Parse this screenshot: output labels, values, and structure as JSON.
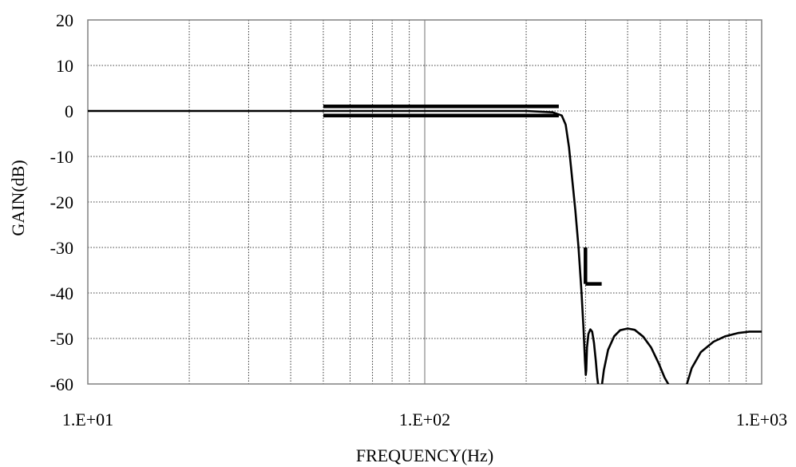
{
  "chart_data": {
    "type": "line",
    "title": "",
    "xlabel": "FREQUENCY(Hz)",
    "ylabel": "GAIN(dB)",
    "x_scale": "log",
    "xlim": [
      10,
      1000
    ],
    "ylim": [
      -60,
      20
    ],
    "y_ticks": [
      20,
      10,
      0,
      -10,
      -20,
      -30,
      -40,
      -50,
      -60
    ],
    "x_tick_labels": [
      {
        "value": 10,
        "label": "1.E+01"
      },
      {
        "value": 100,
        "label": "1.E+02"
      },
      {
        "value": 1000,
        "label": "1.E+03"
      }
    ],
    "grid": true,
    "legend": "none",
    "colors": {
      "line": "#000000",
      "grid": "#000000",
      "frame": "#808080"
    },
    "series": [
      {
        "x": [
          10,
          20,
          50,
          100,
          150,
          200,
          240,
          255,
          262,
          268,
          274,
          280,
          286,
          292,
          296,
          299,
          300.5,
          301.5,
          303,
          306,
          310,
          314,
          318,
          322,
          325,
          327,
          329
        ],
        "y": [
          0,
          0,
          0,
          0,
          0,
          0,
          -0.3,
          -1,
          -3,
          -8,
          -15,
          -22,
          -30,
          -40,
          -48,
          -55,
          -58,
          -57,
          -52,
          -49,
          -48,
          -48.5,
          -51,
          -55,
          -58.5,
          -60,
          -62
        ]
      },
      {
        "x": [
          333,
          336,
          340,
          350,
          365,
          380,
          400,
          420,
          445,
          470,
          495,
          515,
          528,
          535
        ],
        "y": [
          -62,
          -60,
          -57,
          -52.5,
          -49.5,
          -48.2,
          -47.8,
          -48.1,
          -49.6,
          -52,
          -55.5,
          -58.6,
          -60,
          -62
        ]
      },
      {
        "x": [
          590,
          600,
          620,
          660,
          720,
          780,
          850,
          920,
          1000
        ],
        "y": [
          -62,
          -60,
          -56.5,
          -53,
          -50.7,
          -49.5,
          -48.8,
          -48.5,
          -48.5
        ]
      }
    ],
    "spec_lines": [
      {
        "x": [
          50,
          250
        ],
        "y": [
          1,
          1
        ]
      },
      {
        "x": [
          50,
          250
        ],
        "y": [
          -1,
          -1
        ]
      },
      {
        "x": [
          300,
          300
        ],
        "y": [
          -30,
          -38
        ]
      },
      {
        "x": [
          300,
          335
        ],
        "y": [
          -38,
          -38
        ]
      }
    ]
  }
}
